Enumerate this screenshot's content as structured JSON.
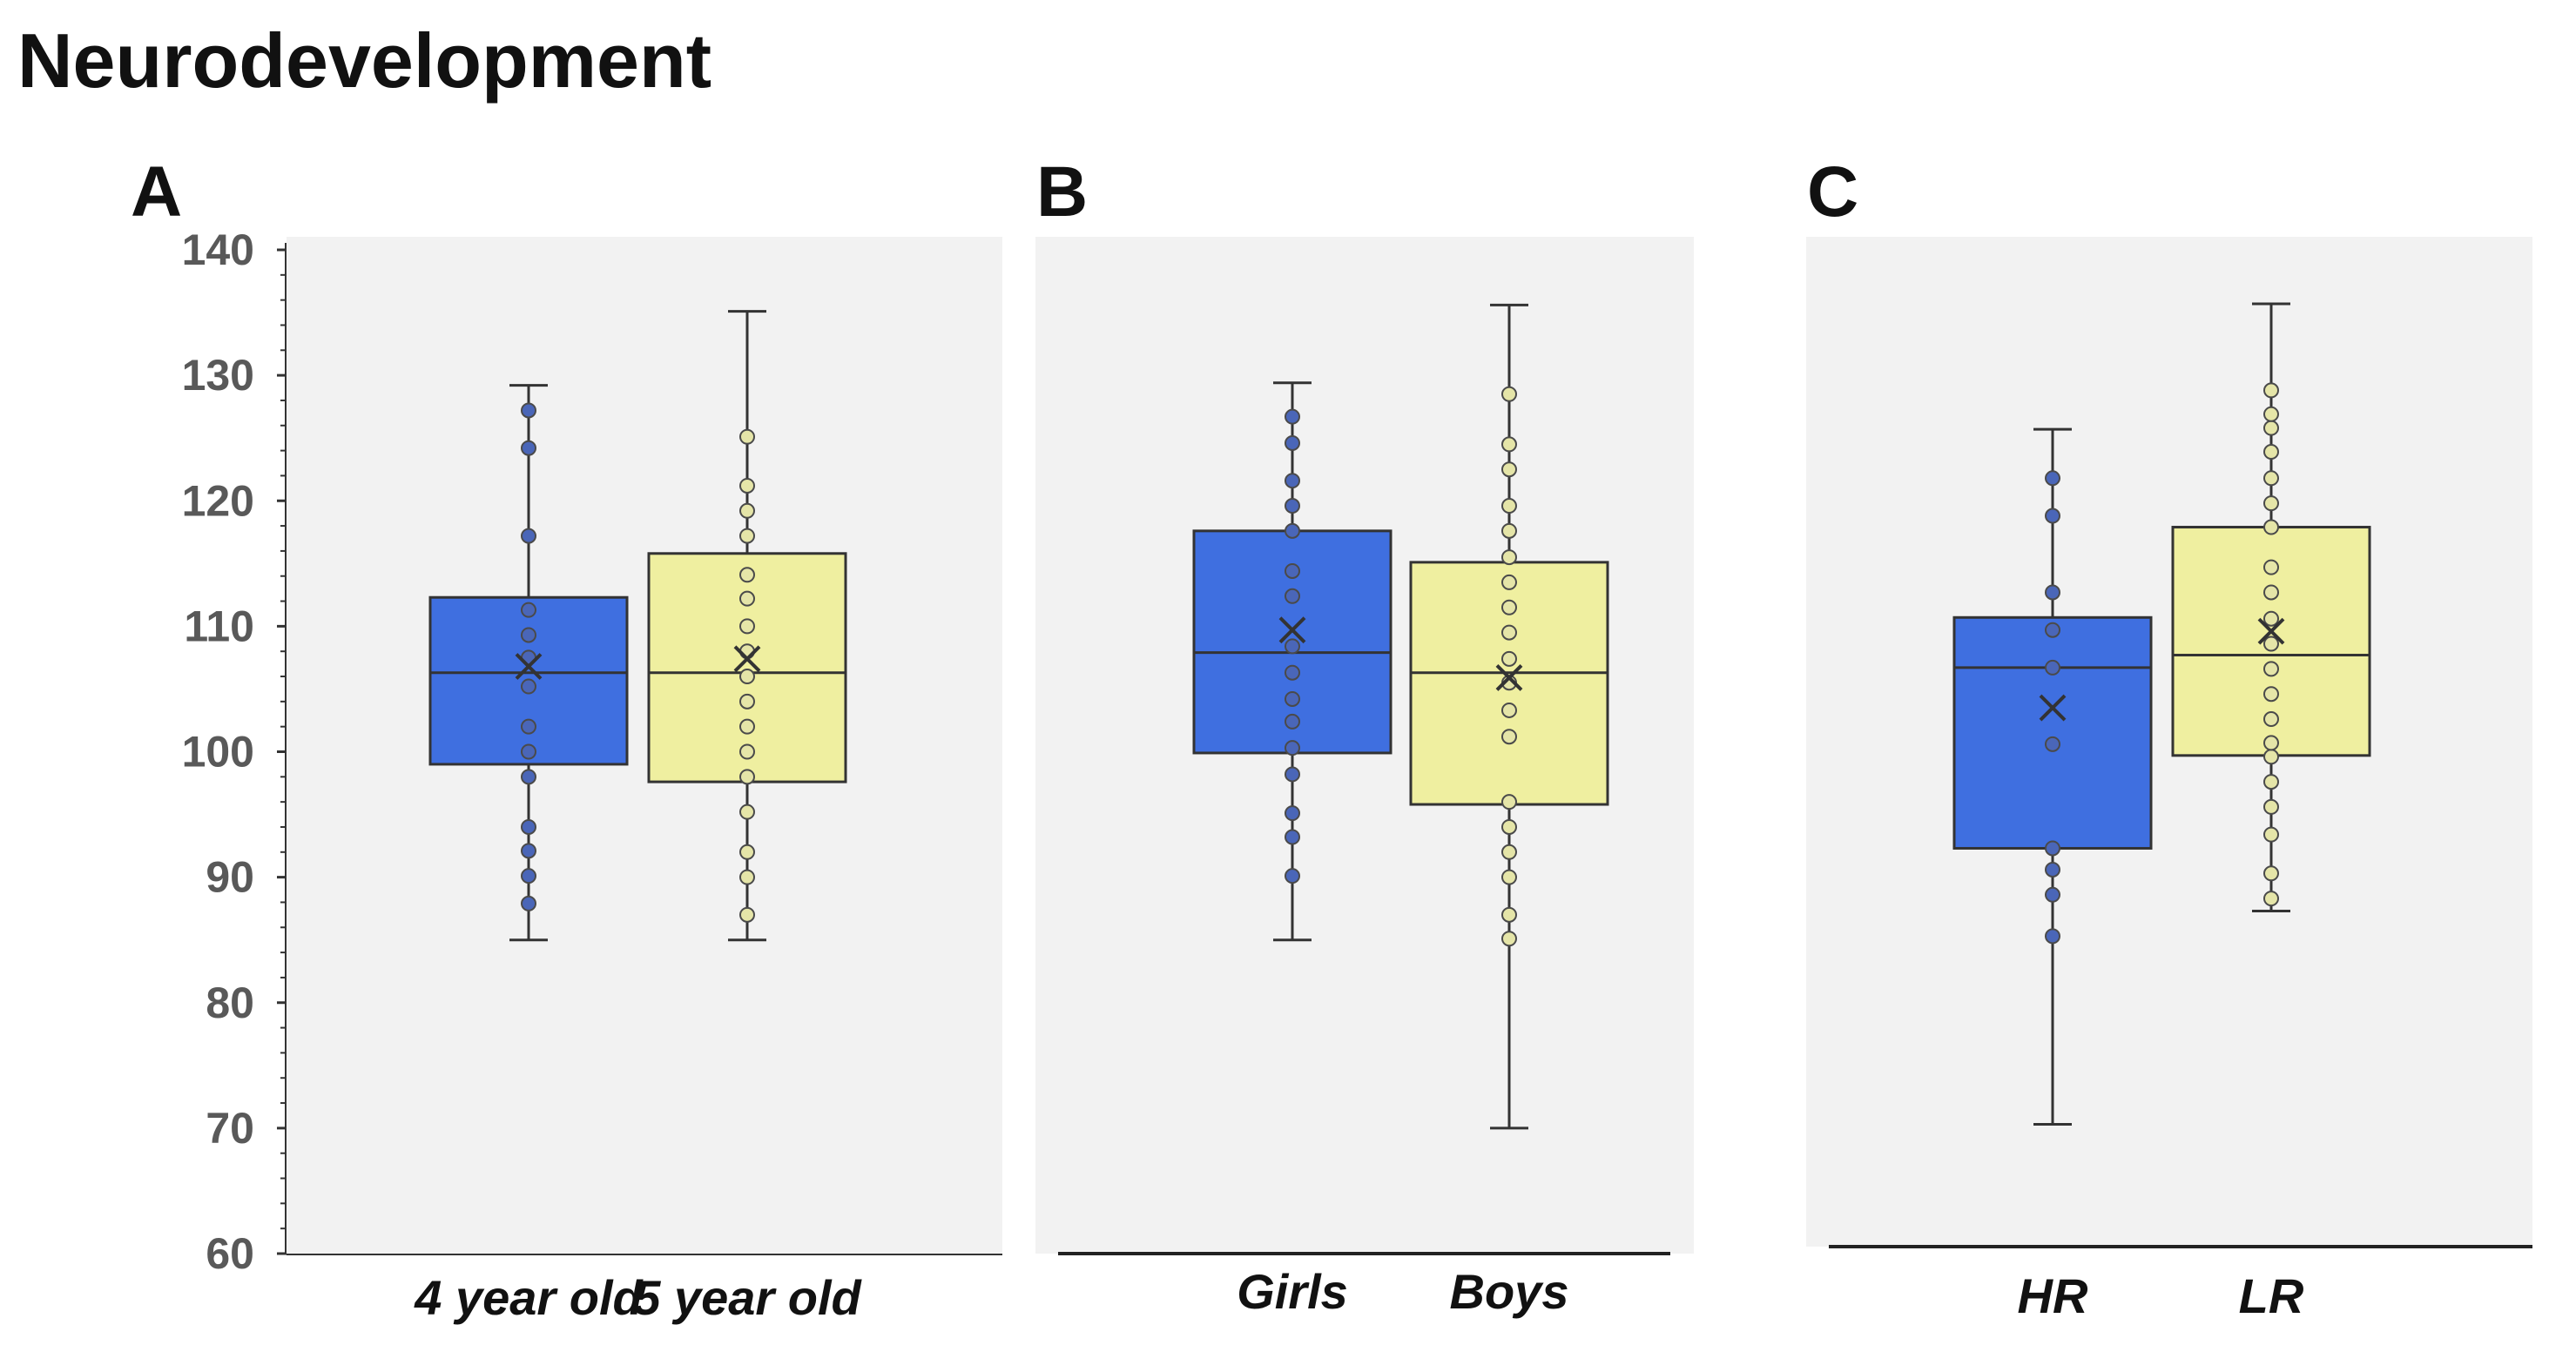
{
  "title": "Neurodevelopment",
  "colors": {
    "group1_fill": "#3F6FE0",
    "group1_point": "#4A66B8",
    "group2_fill": "#EFEFA0",
    "group2_point": "#E5E5A8",
    "panel_bg": "#F2F2F2",
    "stroke": "#333333"
  },
  "chart_data": [
    {
      "type": "box",
      "panel_label": "A",
      "ylim": [
        60,
        140
      ],
      "yticks": [
        60,
        70,
        80,
        90,
        100,
        110,
        120,
        130,
        140
      ],
      "ytick_labels": [
        "60",
        "70",
        "80",
        "90",
        "100",
        "110",
        "120",
        "130",
        "140"
      ],
      "categories": [
        "4 year old",
        "5 year old"
      ],
      "boxes": [
        {
          "name": "4 year old",
          "min": 85,
          "q1": 99,
          "median": 106.3,
          "q3": 112.3,
          "max": 129.2,
          "mean": 106.8,
          "points": [
            87.9,
            90.1,
            92.1,
            94,
            98,
            100,
            102,
            105.2,
            107.5,
            109.3,
            111.3,
            117.2,
            124.2,
            127.2
          ]
        },
        {
          "name": "5 year old",
          "min": 85,
          "q1": 97.6,
          "median": 106.3,
          "q3": 115.8,
          "max": 135.1,
          "mean": 107.4,
          "points": [
            87,
            90,
            92,
            95.2,
            98,
            100,
            102,
            104,
            106,
            108,
            110,
            112.2,
            114.1,
            117.2,
            119.2,
            121.2,
            125.1
          ]
        }
      ]
    },
    {
      "type": "box",
      "panel_label": "B",
      "ylim": [
        60,
        140
      ],
      "categories": [
        "Girls",
        "Boys"
      ],
      "boxes": [
        {
          "name": "Girls",
          "min": 85,
          "q1": 99.9,
          "median": 107.9,
          "q3": 117.6,
          "max": 129.4,
          "mean": 109.7,
          "points": [
            90.1,
            93.2,
            95.1,
            98.2,
            100.3,
            102.4,
            104.2,
            106.3,
            108.4,
            112.4,
            114.4,
            117.6,
            119.6,
            121.6,
            124.6,
            126.7
          ]
        },
        {
          "name": "Boys",
          "min": 70,
          "q1": 95.8,
          "median": 106.3,
          "q3": 115.1,
          "max": 135.6,
          "mean": 105.9,
          "points": [
            85.1,
            87,
            90,
            92,
            94,
            96,
            101.2,
            103.3,
            105.5,
            107.4,
            109.5,
            111.5,
            113.5,
            115.5,
            117.6,
            119.6,
            122.5,
            124.5,
            128.5
          ]
        }
      ]
    },
    {
      "type": "box",
      "panel_label": "C",
      "ylim": [
        60,
        140
      ],
      "categories": [
        "HR",
        "LR"
      ],
      "boxes": [
        {
          "name": "HR",
          "min": 70.3,
          "q1": 92.3,
          "median": 106.7,
          "q3": 110.7,
          "max": 125.7,
          "mean": 103.5,
          "points": [
            85.3,
            88.6,
            90.6,
            92.3,
            100.6,
            106.7,
            109.7,
            112.7,
            118.8,
            121.8
          ]
        },
        {
          "name": "LR",
          "min": 87.3,
          "q1": 99.7,
          "median": 107.7,
          "q3": 117.9,
          "max": 135.7,
          "mean": 109.6,
          "points": [
            88.3,
            90.3,
            93.4,
            95.6,
            97.6,
            99.6,
            100.7,
            102.6,
            104.6,
            106.6,
            108.6,
            110.6,
            112.7,
            114.7,
            117.9,
            119.8,
            121.8,
            123.9,
            125.8,
            126.9,
            128.8
          ]
        }
      ]
    }
  ]
}
